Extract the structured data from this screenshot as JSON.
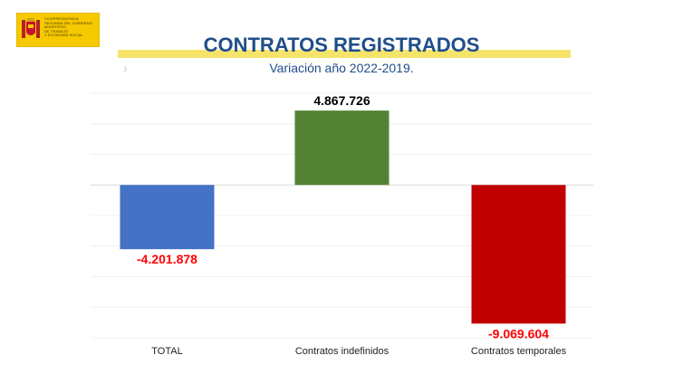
{
  "logo": {
    "lines": "VICEPRESIDENCIA\nSEGUNDA DEL GOBIERNO\nMINISTERIO\nDE TRABAJO\nY ECONOMÍA SOCIAL",
    "icon": "coat-of-arms-icon"
  },
  "header": {
    "title": "CONTRATOS REGISTRADOS",
    "subtitle": "Variación año 2022-2019.",
    "chevron": "›"
  },
  "colors": {
    "title": "#1f4e8a",
    "positive_label": "#000000",
    "negative_label": "#ff0000"
  },
  "chart_data": {
    "type": "bar",
    "categories": [
      "TOTAL",
      "Contratos indefinidos",
      "Contratos temporales"
    ],
    "values": [
      -4201878,
      4867726,
      -9069604
    ],
    "value_labels": [
      "-4.201.878",
      "4.867.726",
      "-9.069.604"
    ],
    "colors": [
      "#4472c4",
      "#548235",
      "#c00000"
    ],
    "ylim": [
      -10000000,
      6000000
    ],
    "grid": true,
    "legend": "none"
  }
}
